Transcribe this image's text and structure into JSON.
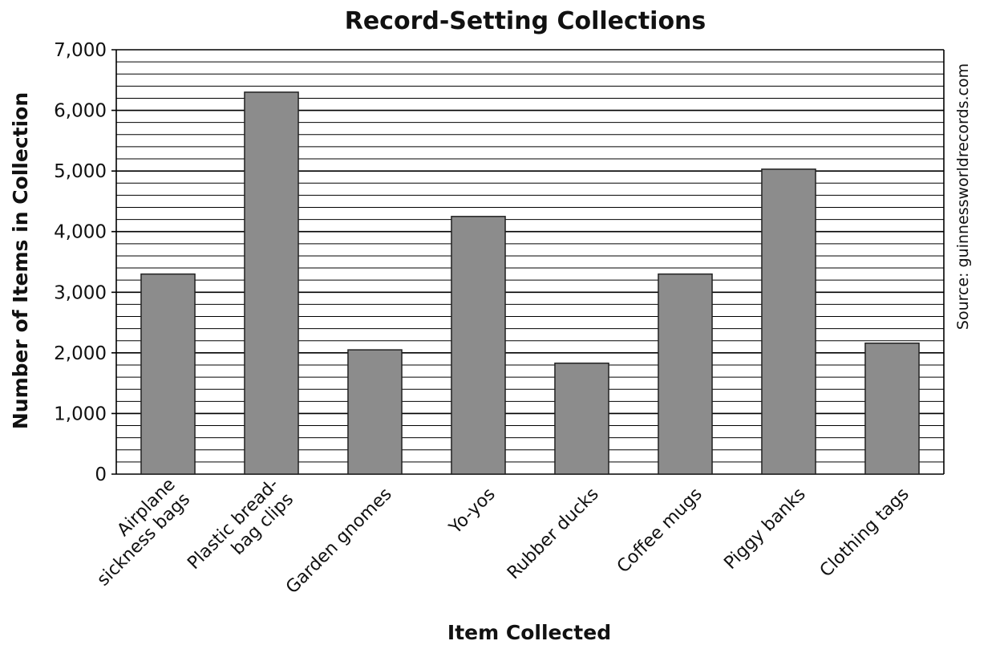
{
  "chart_data": {
    "type": "bar",
    "title": "Record-Setting Collections",
    "x_label": "Item Collected",
    "y_label": "Number of Items in Collection",
    "source": "Source: guinnessworldrecords.com",
    "categories": [
      [
        "Airplane",
        "sickness bags"
      ],
      [
        "Plastic bread-",
        "bag clips"
      ],
      [
        "Garden gnomes"
      ],
      [
        "Yo-yos"
      ],
      [
        "Rubber ducks"
      ],
      [
        "Coffee mugs"
      ],
      [
        "Piggy banks"
      ],
      [
        "Clothing tags"
      ]
    ],
    "values": [
      3300,
      6300,
      2050,
      4250,
      1830,
      3300,
      5030,
      2160
    ],
    "color": "#8c8c8c",
    "ylim": [
      0,
      7000
    ],
    "yticks": [
      {
        "value": 0,
        "label": "0"
      },
      {
        "value": 1000,
        "label": "1,000"
      },
      {
        "value": 2000,
        "label": "2,000"
      },
      {
        "value": 3000,
        "label": "3,000"
      },
      {
        "value": 4000,
        "label": "4,000"
      },
      {
        "value": 5000,
        "label": "5,000"
      },
      {
        "value": 6000,
        "label": "6,000"
      },
      {
        "value": 7000,
        "label": "7,000"
      }
    ],
    "minor_grid_step": 200,
    "grid": true
  }
}
